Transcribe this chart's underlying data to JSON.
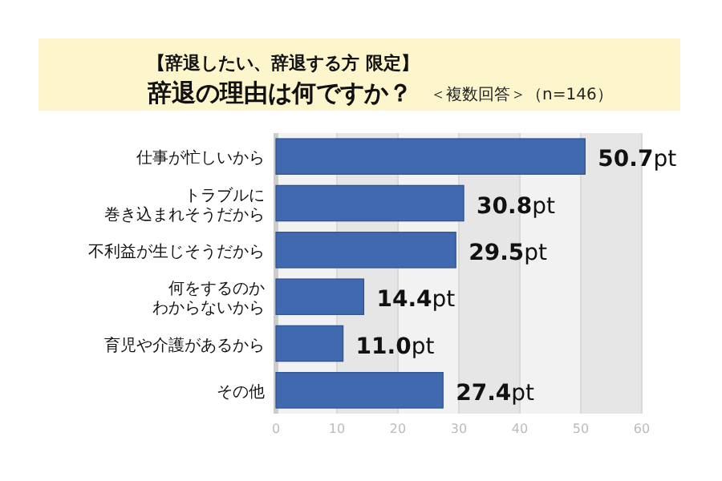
{
  "chart_data": {
    "type": "bar",
    "orientation": "horizontal",
    "subtitle": "【辞退したい、辞退する方 限定】",
    "title": "辞退の理由は何ですか？",
    "annotations": [
      "＜複数回答＞（n=146）"
    ],
    "categories": [
      "仕事が忙しいから",
      "トラブルに巻き込まれそうだから",
      "不利益が生じそうだから",
      "何をするのかわからないから",
      "育児や介護があるから",
      "その他"
    ],
    "values": [
      50.7,
      30.8,
      29.5,
      14.4,
      11.0,
      27.4
    ],
    "value_labels": [
      "**50.7**pt",
      "**30.8**pt",
      "**29.5**pt",
      "**14.4**pt",
      "**11.0**pt",
      "**27.4**pt"
    ],
    "color": "#4169b0",
    "xlim": [
      0,
      60
    ],
    "xticks": [
      0,
      10,
      20,
      30,
      40,
      50,
      60
    ],
    "grid": "x"
  }
}
